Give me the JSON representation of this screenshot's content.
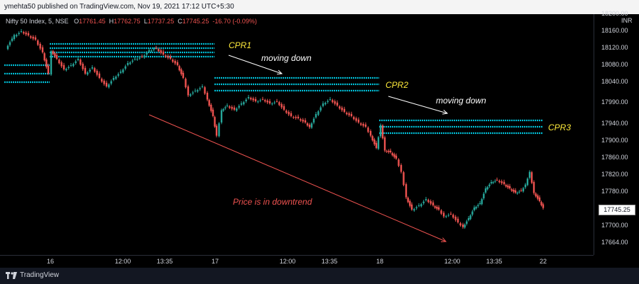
{
  "header": {
    "published_text": "ymehta50 published on TradingView.com, Nov 19, 2021 17:12 UTC+5:30"
  },
  "symbol": {
    "name": "Nifty 50 Index, 5, NSE",
    "o_label": "O",
    "o": "17761.45",
    "h_label": "H",
    "h": "17762.75",
    "l_label": "L",
    "l": "17737.25",
    "c_label": "C",
    "c": "17745.25",
    "change": "-16.70 (-0.09%)"
  },
  "price_scale": {
    "currency": "INR",
    "ticks": [
      "18200.00",
      "18160.00",
      "18120.00",
      "18080.00",
      "18040.00",
      "17990.00",
      "17940.00",
      "17900.00",
      "17860.00",
      "17820.00",
      "17780.00",
      "17745.25",
      "17700.00",
      "17664.00"
    ],
    "last_price": "17745.25"
  },
  "time_scale": {
    "ticks": [
      "16",
      "12:00",
      "13:35",
      "17",
      "12:00",
      "13:35",
      "18",
      "12:00",
      "13:35",
      "22"
    ]
  },
  "annotations": {
    "cpr1": "CPR1",
    "cpr2": "CPR2",
    "cpr3": "CPR3",
    "moving_down_1": "moving down",
    "moving_down_2": "moving down",
    "downtrend": "Price is in downtrend"
  },
  "footer": {
    "brand": "TradingView"
  },
  "colors": {
    "up": "#26a69a",
    "down": "#ef5350",
    "cpr": "#00bcd4",
    "annot_yellow": "#ffeb3b",
    "annot_white": "#ffffff",
    "trend_red": "#ef5350"
  }
}
